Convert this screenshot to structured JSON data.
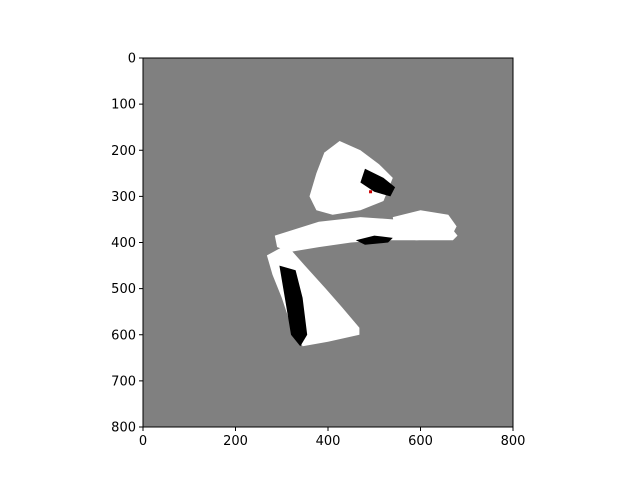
{
  "chart_data": {
    "type": "heatmap",
    "title": "",
    "xlabel": "",
    "ylabel": "",
    "xlim": [
      0,
      800
    ],
    "ylim": [
      800,
      0
    ],
    "x_ticks": [
      0,
      200,
      400,
      600,
      800
    ],
    "y_ticks": [
      0,
      100,
      200,
      300,
      400,
      500,
      600,
      700,
      800
    ],
    "y_inverted": true,
    "grid": false,
    "colormap": "gray",
    "unknown_color": "#808080",
    "free_color": "#ffffff",
    "occupied_color": "#000000",
    "marker": {
      "x": 492,
      "y": 290,
      "color": "#cc0000"
    },
    "free_regions": [
      {
        "name": "upper-wedge",
        "points": [
          [
            392,
            205
          ],
          [
            425,
            180
          ],
          [
            470,
            200
          ],
          [
            510,
            230
          ],
          [
            540,
            260
          ],
          [
            520,
            310
          ],
          [
            470,
            330
          ],
          [
            410,
            340
          ],
          [
            375,
            330
          ],
          [
            360,
            300
          ],
          [
            375,
            250
          ]
        ]
      },
      {
        "name": "horizontal-corridor",
        "points": [
          [
            285,
            385
          ],
          [
            380,
            355
          ],
          [
            470,
            345
          ],
          [
            540,
            350
          ],
          [
            610,
            355
          ],
          [
            660,
            360
          ],
          [
            680,
            385
          ],
          [
            670,
            395
          ],
          [
            600,
            395
          ],
          [
            520,
            395
          ],
          [
            450,
            400
          ],
          [
            380,
            410
          ],
          [
            320,
            420
          ],
          [
            290,
            410
          ]
        ]
      },
      {
        "name": "lower-leg",
        "points": [
          [
            268,
            428
          ],
          [
            310,
            405
          ],
          [
            350,
            450
          ],
          [
            395,
            500
          ],
          [
            430,
            540
          ],
          [
            468,
            585
          ],
          [
            468,
            600
          ],
          [
            400,
            615
          ],
          [
            345,
            625
          ],
          [
            320,
            580
          ],
          [
            300,
            520
          ],
          [
            280,
            470
          ]
        ]
      },
      {
        "name": "right-lobe",
        "points": [
          [
            540,
            345
          ],
          [
            600,
            330
          ],
          [
            660,
            340
          ],
          [
            678,
            365
          ],
          [
            665,
            390
          ],
          [
            590,
            395
          ],
          [
            545,
            380
          ]
        ]
      }
    ],
    "occupied_regions": [
      {
        "name": "lower-leg-obstacle",
        "points": [
          [
            295,
            450
          ],
          [
            330,
            460
          ],
          [
            345,
            520
          ],
          [
            355,
            600
          ],
          [
            340,
            625
          ],
          [
            320,
            600
          ],
          [
            310,
            540
          ]
        ]
      },
      {
        "name": "upper-right-wall",
        "points": [
          [
            480,
            240
          ],
          [
            520,
            260
          ],
          [
            545,
            280
          ],
          [
            535,
            300
          ],
          [
            500,
            290
          ],
          [
            470,
            270
          ]
        ]
      },
      {
        "name": "corridor-edge",
        "points": [
          [
            460,
            395
          ],
          [
            500,
            385
          ],
          [
            540,
            390
          ],
          [
            530,
            400
          ],
          [
            480,
            405
          ]
        ]
      }
    ]
  }
}
